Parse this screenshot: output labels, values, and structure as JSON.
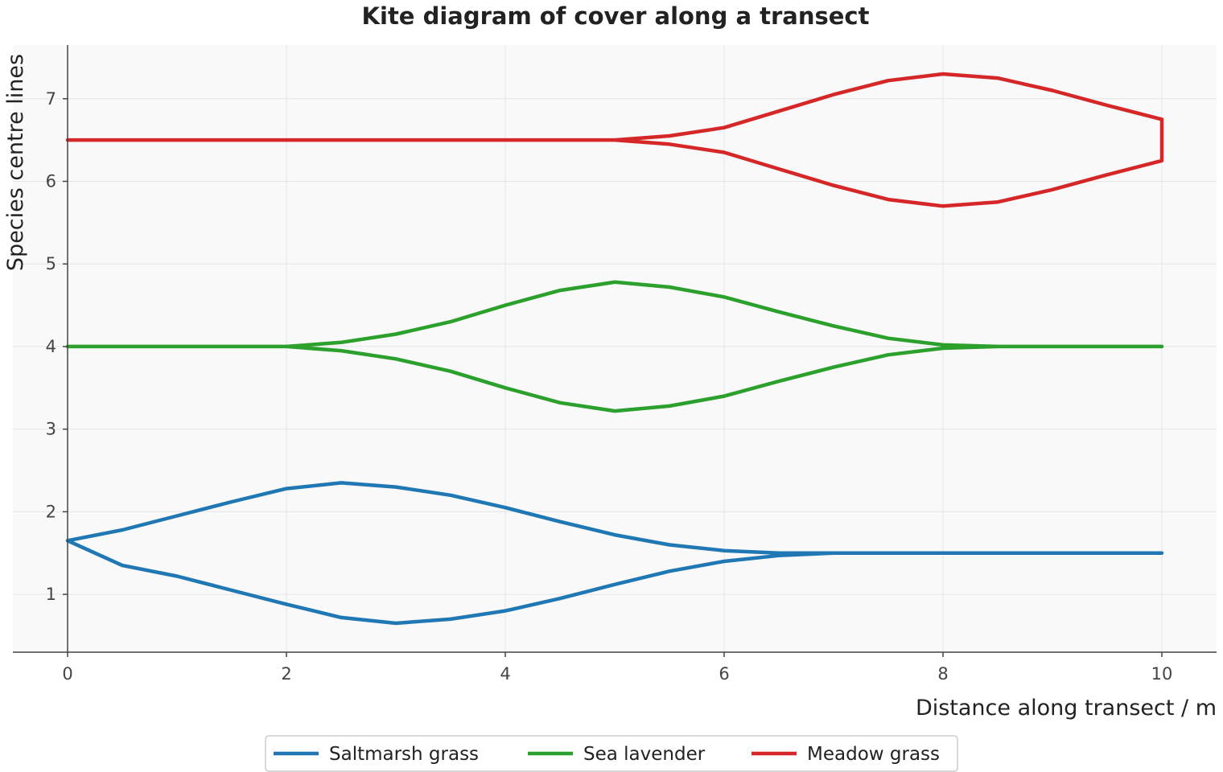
{
  "chart_data": {
    "type": "line",
    "title": "Kite diagram of cover along a transect",
    "xlabel": "Distance along transect / m",
    "ylabel": "Species centre lines",
    "xlim": [
      -0.5,
      10.5
    ],
    "ylim": [
      0.3,
      7.65
    ],
    "xticks": [
      0,
      2,
      4,
      6,
      8,
      10
    ],
    "yticks": [
      1,
      2,
      3,
      4,
      5,
      6,
      7
    ],
    "grid": true,
    "legend_position": "bottom-center",
    "x": [
      0,
      0.5,
      1,
      1.5,
      2,
      2.5,
      3,
      3.5,
      4,
      4.5,
      5,
      5.5,
      6,
      6.5,
      7,
      7.5,
      8,
      8.5,
      9,
      9.5,
      10
    ],
    "series": [
      {
        "name": "Saltmarsh grass",
        "color": "#1f77b4",
        "upper": [
          1.65,
          1.78,
          1.95,
          2.12,
          2.28,
          2.35,
          2.3,
          2.2,
          2.05,
          1.88,
          1.72,
          1.6,
          1.53,
          1.5,
          1.5,
          1.5,
          1.5,
          1.5,
          1.5,
          1.5,
          1.5
        ],
        "lower": [
          1.65,
          1.35,
          1.22,
          1.05,
          0.88,
          0.72,
          0.65,
          0.7,
          0.8,
          0.95,
          1.12,
          1.28,
          1.4,
          1.47,
          1.5,
          1.5,
          1.5,
          1.5,
          1.5,
          1.5,
          1.5
        ]
      },
      {
        "name": "Sea lavender",
        "color": "#2ca02c",
        "upper": [
          4.0,
          4.0,
          4.0,
          4.0,
          4.0,
          4.05,
          4.15,
          4.3,
          4.5,
          4.68,
          4.78,
          4.72,
          4.6,
          4.42,
          4.25,
          4.1,
          4.02,
          4.0,
          4.0,
          4.0,
          4.0
        ],
        "lower": [
          4.0,
          4.0,
          4.0,
          4.0,
          4.0,
          3.95,
          3.85,
          3.7,
          3.5,
          3.32,
          3.22,
          3.28,
          3.4,
          3.58,
          3.75,
          3.9,
          3.98,
          4.0,
          4.0,
          4.0,
          4.0
        ]
      },
      {
        "name": "Meadow grass",
        "color": "#d62728",
        "upper": [
          6.5,
          6.5,
          6.5,
          6.5,
          6.5,
          6.5,
          6.5,
          6.5,
          6.5,
          6.5,
          6.5,
          6.55,
          6.65,
          6.85,
          7.05,
          7.22,
          7.3,
          7.25,
          7.1,
          6.92,
          6.75
        ],
        "lower": [
          6.5,
          6.5,
          6.5,
          6.5,
          6.5,
          6.5,
          6.5,
          6.5,
          6.5,
          6.5,
          6.5,
          6.45,
          6.35,
          6.15,
          5.95,
          5.78,
          5.7,
          5.75,
          5.9,
          6.08,
          6.25
        ]
      }
    ]
  }
}
